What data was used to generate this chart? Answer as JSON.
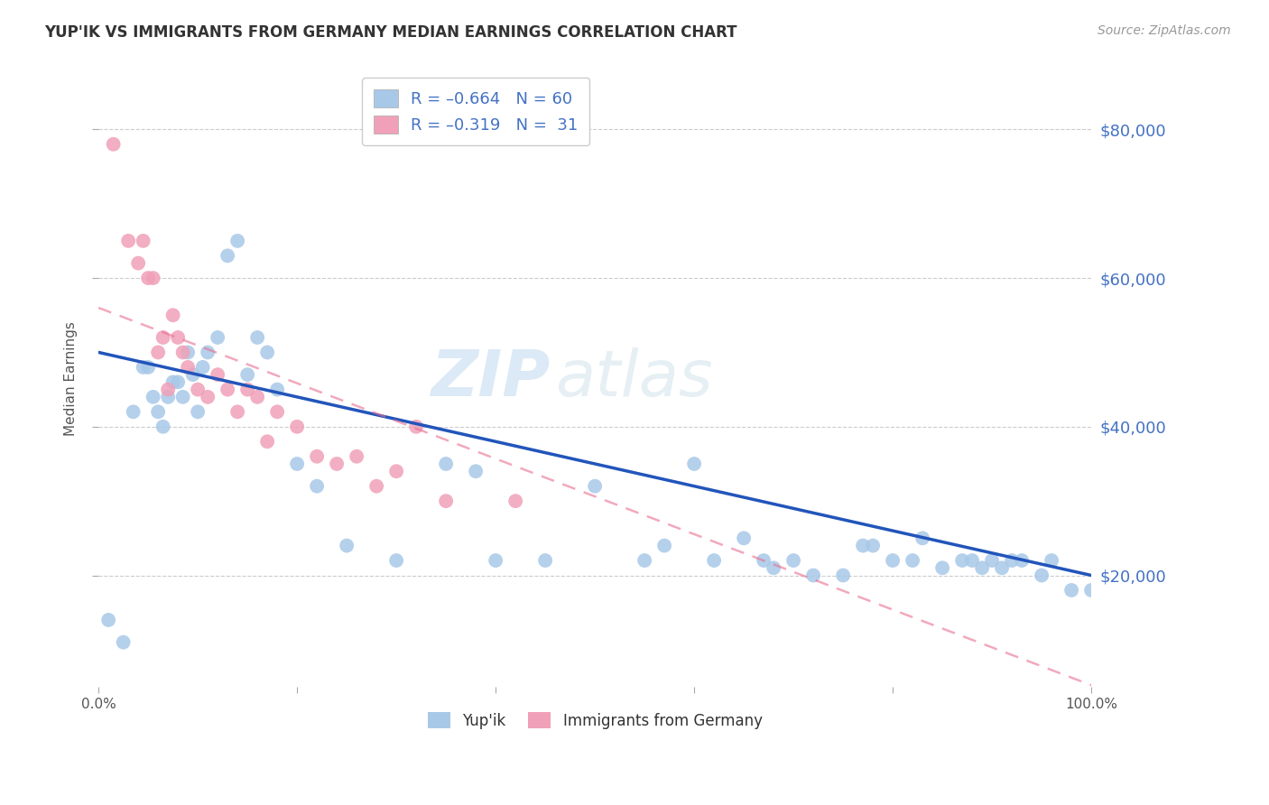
{
  "title": "YUP'IK VS IMMIGRANTS FROM GERMANY MEDIAN EARNINGS CORRELATION CHART",
  "source": "Source: ZipAtlas.com",
  "ylabel": "Median Earnings",
  "yticklabels": [
    "$20,000",
    "$40,000",
    "$60,000",
    "$80,000"
  ],
  "ytickvalues": [
    20000,
    40000,
    60000,
    80000
  ],
  "ymin": 5000,
  "ymax": 88000,
  "xmin": 0,
  "xmax": 100,
  "series1_color": "#a8c8e8",
  "series2_color": "#f0a0b8",
  "trendline1_color": "#2255bb",
  "trendline2_color": "#e87090",
  "watermark_zip": "ZIP",
  "watermark_atlas": "atlas",
  "background_color": "#ffffff",
  "series1_name": "Yup'ik",
  "series2_name": "Immigrants from Germany",
  "series1_R": -0.664,
  "series1_N": 60,
  "series2_R": -0.319,
  "series2_N": 31,
  "yup_ik_x": [
    1.0,
    2.5,
    3.5,
    4.5,
    5.0,
    5.5,
    6.0,
    6.5,
    7.0,
    7.5,
    8.0,
    8.5,
    9.0,
    9.5,
    10.0,
    10.5,
    11.0,
    12.0,
    13.0,
    14.0,
    15.0,
    16.0,
    17.0,
    18.0,
    20.0,
    22.0,
    25.0,
    30.0,
    35.0,
    38.0,
    40.0,
    45.0,
    50.0,
    55.0,
    57.0,
    60.0,
    62.0,
    65.0,
    67.0,
    68.0,
    70.0,
    72.0,
    75.0,
    77.0,
    78.0,
    80.0,
    82.0,
    83.0,
    85.0,
    87.0,
    88.0,
    89.0,
    90.0,
    91.0,
    92.0,
    93.0,
    95.0,
    96.0,
    98.0,
    100.0
  ],
  "yup_ik_y": [
    14000,
    11000,
    42000,
    48000,
    48000,
    44000,
    42000,
    40000,
    44000,
    46000,
    46000,
    44000,
    50000,
    47000,
    42000,
    48000,
    50000,
    52000,
    63000,
    65000,
    47000,
    52000,
    50000,
    45000,
    35000,
    32000,
    24000,
    22000,
    35000,
    34000,
    22000,
    22000,
    32000,
    22000,
    24000,
    35000,
    22000,
    25000,
    22000,
    21000,
    22000,
    20000,
    20000,
    24000,
    24000,
    22000,
    22000,
    25000,
    21000,
    22000,
    22000,
    21000,
    22000,
    21000,
    22000,
    22000,
    20000,
    22000,
    18000,
    18000
  ],
  "germany_x": [
    1.5,
    3.0,
    4.0,
    4.5,
    5.0,
    5.5,
    6.0,
    6.5,
    7.0,
    7.5,
    8.0,
    8.5,
    9.0,
    10.0,
    11.0,
    12.0,
    13.0,
    14.0,
    15.0,
    16.0,
    17.0,
    18.0,
    20.0,
    22.0,
    24.0,
    26.0,
    28.0,
    30.0,
    32.0,
    35.0,
    42.0
  ],
  "germany_y": [
    78000,
    65000,
    62000,
    65000,
    60000,
    60000,
    50000,
    52000,
    45000,
    55000,
    52000,
    50000,
    48000,
    45000,
    44000,
    47000,
    45000,
    42000,
    45000,
    44000,
    38000,
    42000,
    40000,
    36000,
    35000,
    36000,
    32000,
    34000,
    40000,
    30000,
    30000
  ]
}
